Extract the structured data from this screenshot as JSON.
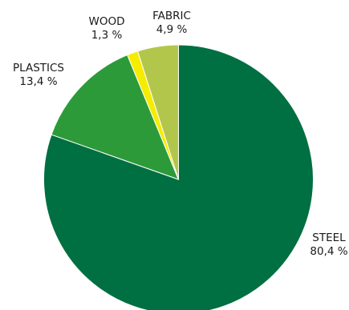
{
  "chart_data": {
    "type": "pie",
    "title": "",
    "start_angle_deg": 0,
    "direction": "clockwise",
    "slices": [
      {
        "label": "STEEL",
        "value": 80.4,
        "value_label": "80,4 %",
        "color": "#006f41"
      },
      {
        "label": "PLASTICS",
        "value": 13.4,
        "value_label": "13,4 %",
        "color": "#2d9a3a"
      },
      {
        "label": "WOOD",
        "value": 1.3,
        "value_label": "1,3 %",
        "color": "#f5ec00"
      },
      {
        "label": "FABRIC",
        "value": 4.9,
        "value_label": "4,9 %",
        "color": "#b3c64c"
      }
    ]
  }
}
